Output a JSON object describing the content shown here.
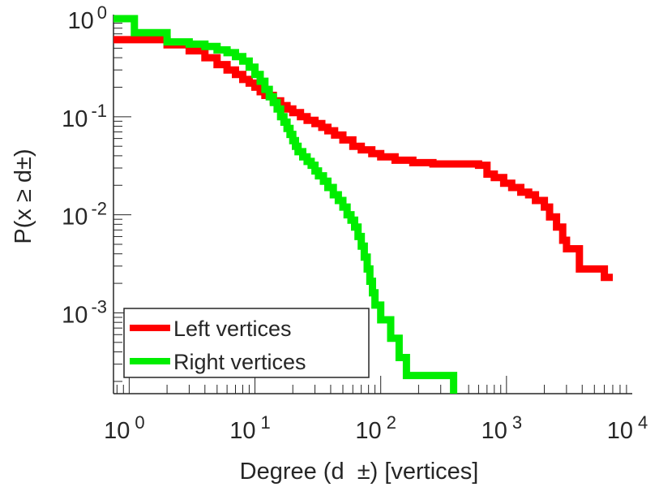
{
  "chart_data": {
    "type": "line",
    "title": "",
    "xlabel": "Degree (d  ±) [vertices]",
    "ylabel": "P(x ≥ d±)",
    "xscale": "log",
    "yscale": "log",
    "xlim": [
      0.75,
      10000
    ],
    "ylim": [
      0.00015,
      1.1
    ],
    "x_ticks": [
      {
        "value": 1,
        "base": "10",
        "exp": "0"
      },
      {
        "value": 10,
        "base": "10",
        "exp": "1"
      },
      {
        "value": 100,
        "base": "10",
        "exp": "2"
      },
      {
        "value": 1000,
        "base": "10",
        "exp": "3"
      },
      {
        "value": 10000,
        "base": "10",
        "exp": "4"
      }
    ],
    "y_ticks": [
      {
        "value": 1,
        "base": "10",
        "exp": "0"
      },
      {
        "value": 0.1,
        "base": "10",
        "exp": "-1"
      },
      {
        "value": 0.01,
        "base": "10",
        "exp": "-2"
      },
      {
        "value": 0.001,
        "base": "10",
        "exp": "-3"
      }
    ],
    "legend_position": "bottom-left",
    "series": [
      {
        "name": "Left vertices",
        "color": "#ff0000",
        "step": true,
        "points": [
          [
            0.75,
            0.61
          ],
          [
            2,
            0.54
          ],
          [
            3,
            0.47
          ],
          [
            4,
            0.4
          ],
          [
            5,
            0.34
          ],
          [
            6,
            0.3
          ],
          [
            7,
            0.27
          ],
          [
            8,
            0.24
          ],
          [
            9,
            0.22
          ],
          [
            10,
            0.2
          ],
          [
            11,
            0.18
          ],
          [
            12,
            0.165
          ],
          [
            14,
            0.145
          ],
          [
            16,
            0.13
          ],
          [
            18,
            0.12
          ],
          [
            20,
            0.11
          ],
          [
            23,
            0.1
          ],
          [
            26,
            0.092
          ],
          [
            30,
            0.085
          ],
          [
            34,
            0.078
          ],
          [
            38,
            0.072
          ],
          [
            43,
            0.065
          ],
          [
            50,
            0.058
          ],
          [
            60,
            0.05
          ],
          [
            70,
            0.046
          ],
          [
            85,
            0.042
          ],
          [
            100,
            0.039
          ],
          [
            130,
            0.036
          ],
          [
            180,
            0.034
          ],
          [
            260,
            0.033
          ],
          [
            600,
            0.032
          ],
          [
            700,
            0.026
          ],
          [
            800,
            0.024
          ],
          [
            950,
            0.021
          ],
          [
            1100,
            0.019
          ],
          [
            1300,
            0.017
          ],
          [
            1500,
            0.016
          ],
          [
            1700,
            0.014
          ],
          [
            2000,
            0.012
          ],
          [
            2200,
            0.0095
          ],
          [
            2500,
            0.0075
          ],
          [
            2800,
            0.0055
          ],
          [
            3000,
            0.0045
          ],
          [
            3800,
            0.0028
          ],
          [
            6000,
            0.0023
          ],
          [
            7000,
            0.0023
          ]
        ]
      },
      {
        "name": "Right vertices",
        "color": "#00ee00",
        "step": true,
        "points": [
          [
            0.75,
            1.0
          ],
          [
            1.1,
            0.72
          ],
          [
            2,
            0.58
          ],
          [
            3,
            0.55
          ],
          [
            4,
            0.52
          ],
          [
            5,
            0.48
          ],
          [
            6,
            0.45
          ],
          [
            7,
            0.41
          ],
          [
            8,
            0.37
          ],
          [
            9,
            0.32
          ],
          [
            10,
            0.27
          ],
          [
            11,
            0.23
          ],
          [
            12,
            0.19
          ],
          [
            13,
            0.16
          ],
          [
            14,
            0.14
          ],
          [
            15,
            0.12
          ],
          [
            16,
            0.1
          ],
          [
            17,
            0.088
          ],
          [
            18,
            0.076
          ],
          [
            19,
            0.066
          ],
          [
            20,
            0.057
          ],
          [
            21,
            0.05
          ],
          [
            22,
            0.044
          ],
          [
            24,
            0.039
          ],
          [
            26,
            0.035
          ],
          [
            28,
            0.032
          ],
          [
            30,
            0.028
          ],
          [
            32,
            0.025
          ],
          [
            35,
            0.022
          ],
          [
            38,
            0.019
          ],
          [
            42,
            0.016
          ],
          [
            46,
            0.014
          ],
          [
            50,
            0.012
          ],
          [
            54,
            0.01
          ],
          [
            58,
            0.0088
          ],
          [
            62,
            0.0075
          ],
          [
            66,
            0.006
          ],
          [
            70,
            0.0048
          ],
          [
            74,
            0.0037
          ],
          [
            78,
            0.0028
          ],
          [
            82,
            0.0021
          ],
          [
            86,
            0.0016
          ],
          [
            90,
            0.0012
          ],
          [
            100,
            0.00085
          ],
          [
            120,
            0.00055
          ],
          [
            140,
            0.00035
          ],
          [
            160,
            0.00023
          ],
          [
            360,
            0.00023
          ],
          [
            380,
            0.00015
          ]
        ]
      }
    ]
  }
}
